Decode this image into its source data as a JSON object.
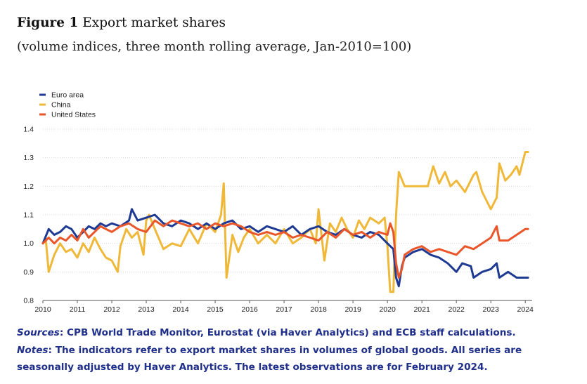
{
  "figure": {
    "label": "Figure 1",
    "title": "Export market shares",
    "subtitle": "(volume indices, three month rolling average, Jan-2010=100)"
  },
  "footer": {
    "sources_label": "Sources",
    "sources_text": ": CPB World Trade Monitor, Eurostat (via Haver Analytics) and ECB staff calculations.",
    "notes_label": "Notes",
    "notes_text": ": The indicators refer to export market shares in volumes of global goods. All series are seasonally adjusted by Haver Analytics. The latest observations are for February 2024."
  },
  "chart_data": {
    "type": "line",
    "xlabel": "",
    "ylabel": "",
    "xlim": [
      2010,
      2024.2
    ],
    "ylim": [
      0.8,
      1.4
    ],
    "x_ticks": [
      2010,
      2011,
      2012,
      2013,
      2014,
      2015,
      2016,
      2017,
      2018,
      2019,
      2020,
      2021,
      2022,
      2023,
      2024
    ],
    "y_ticks": [
      0.8,
      0.9,
      1.0,
      1.1,
      1.2,
      1.3,
      1.4
    ],
    "grid": true,
    "legend_position": "top-left",
    "series": [
      {
        "name": "Euro area",
        "color": "#1f3a93",
        "points": [
          [
            2010.0,
            1.0
          ],
          [
            2010.17,
            1.05
          ],
          [
            2010.33,
            1.03
          ],
          [
            2010.5,
            1.04
          ],
          [
            2010.67,
            1.06
          ],
          [
            2010.83,
            1.05
          ],
          [
            2011.0,
            1.02
          ],
          [
            2011.17,
            1.04
          ],
          [
            2011.33,
            1.06
          ],
          [
            2011.5,
            1.05
          ],
          [
            2011.67,
            1.07
          ],
          [
            2011.83,
            1.06
          ],
          [
            2012.0,
            1.07
          ],
          [
            2012.25,
            1.06
          ],
          [
            2012.5,
            1.08
          ],
          [
            2012.58,
            1.12
          ],
          [
            2012.75,
            1.08
          ],
          [
            2013.0,
            1.09
          ],
          [
            2013.25,
            1.1
          ],
          [
            2013.5,
            1.07
          ],
          [
            2013.75,
            1.06
          ],
          [
            2014.0,
            1.08
          ],
          [
            2014.25,
            1.07
          ],
          [
            2014.5,
            1.05
          ],
          [
            2014.75,
            1.07
          ],
          [
            2015.0,
            1.05
          ],
          [
            2015.25,
            1.07
          ],
          [
            2015.5,
            1.08
          ],
          [
            2015.75,
            1.05
          ],
          [
            2016.0,
            1.06
          ],
          [
            2016.25,
            1.04
          ],
          [
            2016.5,
            1.06
          ],
          [
            2016.75,
            1.05
          ],
          [
            2017.0,
            1.04
          ],
          [
            2017.25,
            1.06
          ],
          [
            2017.5,
            1.03
          ],
          [
            2017.75,
            1.05
          ],
          [
            2018.0,
            1.06
          ],
          [
            2018.25,
            1.04
          ],
          [
            2018.5,
            1.03
          ],
          [
            2018.75,
            1.05
          ],
          [
            2019.0,
            1.03
          ],
          [
            2019.25,
            1.02
          ],
          [
            2019.5,
            1.04
          ],
          [
            2019.75,
            1.03
          ],
          [
            2020.0,
            1.0
          ],
          [
            2020.17,
            0.98
          ],
          [
            2020.25,
            0.88
          ],
          [
            2020.33,
            0.85
          ],
          [
            2020.42,
            0.92
          ],
          [
            2020.5,
            0.95
          ],
          [
            2020.75,
            0.97
          ],
          [
            2021.0,
            0.98
          ],
          [
            2021.25,
            0.96
          ],
          [
            2021.5,
            0.95
          ],
          [
            2021.75,
            0.93
          ],
          [
            2022.0,
            0.9
          ],
          [
            2022.17,
            0.93
          ],
          [
            2022.42,
            0.92
          ],
          [
            2022.5,
            0.88
          ],
          [
            2022.75,
            0.9
          ],
          [
            2023.0,
            0.91
          ],
          [
            2023.17,
            0.93
          ],
          [
            2023.25,
            0.88
          ],
          [
            2023.5,
            0.9
          ],
          [
            2023.75,
            0.88
          ],
          [
            2024.0,
            0.88
          ],
          [
            2024.08,
            0.88
          ]
        ]
      },
      {
        "name": "China",
        "color": "#f0b838",
        "points": [
          [
            2010.0,
            1.0
          ],
          [
            2010.08,
            1.02
          ],
          [
            2010.17,
            0.9
          ],
          [
            2010.33,
            0.96
          ],
          [
            2010.5,
            1.0
          ],
          [
            2010.67,
            0.97
          ],
          [
            2010.83,
            0.98
          ],
          [
            2011.0,
            0.95
          ],
          [
            2011.17,
            1.0
          ],
          [
            2011.33,
            0.97
          ],
          [
            2011.5,
            1.02
          ],
          [
            2011.67,
            0.98
          ],
          [
            2011.83,
            0.95
          ],
          [
            2012.0,
            0.94
          ],
          [
            2012.17,
            0.9
          ],
          [
            2012.25,
            0.99
          ],
          [
            2012.42,
            1.05
          ],
          [
            2012.58,
            1.02
          ],
          [
            2012.75,
            1.04
          ],
          [
            2012.92,
            0.96
          ],
          [
            2013.0,
            1.08
          ],
          [
            2013.08,
            1.1
          ],
          [
            2013.25,
            1.05
          ],
          [
            2013.5,
            0.98
          ],
          [
            2013.75,
            1.0
          ],
          [
            2014.0,
            0.99
          ],
          [
            2014.25,
            1.05
          ],
          [
            2014.5,
            1.0
          ],
          [
            2014.75,
            1.07
          ],
          [
            2015.0,
            1.04
          ],
          [
            2015.17,
            1.1
          ],
          [
            2015.25,
            1.21
          ],
          [
            2015.33,
            0.88
          ],
          [
            2015.5,
            1.03
          ],
          [
            2015.67,
            0.97
          ],
          [
            2015.83,
            1.02
          ],
          [
            2016.0,
            1.05
          ],
          [
            2016.25,
            1.0
          ],
          [
            2016.5,
            1.03
          ],
          [
            2016.75,
            1.0
          ],
          [
            2017.0,
            1.05
          ],
          [
            2017.25,
            1.0
          ],
          [
            2017.5,
            1.02
          ],
          [
            2017.75,
            1.05
          ],
          [
            2017.92,
            1.0
          ],
          [
            2018.0,
            1.12
          ],
          [
            2018.17,
            0.94
          ],
          [
            2018.33,
            1.07
          ],
          [
            2018.5,
            1.04
          ],
          [
            2018.67,
            1.09
          ],
          [
            2018.83,
            1.05
          ],
          [
            2019.0,
            1.02
          ],
          [
            2019.17,
            1.08
          ],
          [
            2019.33,
            1.05
          ],
          [
            2019.5,
            1.09
          ],
          [
            2019.75,
            1.07
          ],
          [
            2019.92,
            1.09
          ],
          [
            2020.0,
            0.99
          ],
          [
            2020.08,
            0.83
          ],
          [
            2020.17,
            0.83
          ],
          [
            2020.25,
            1.1
          ],
          [
            2020.33,
            1.25
          ],
          [
            2020.5,
            1.2
          ],
          [
            2020.75,
            1.2
          ],
          [
            2021.0,
            1.2
          ],
          [
            2021.17,
            1.2
          ],
          [
            2021.33,
            1.27
          ],
          [
            2021.5,
            1.21
          ],
          [
            2021.67,
            1.25
          ],
          [
            2021.83,
            1.2
          ],
          [
            2022.0,
            1.22
          ],
          [
            2022.25,
            1.18
          ],
          [
            2022.5,
            1.24
          ],
          [
            2022.58,
            1.25
          ],
          [
            2022.75,
            1.18
          ],
          [
            2023.0,
            1.12
          ],
          [
            2023.17,
            1.16
          ],
          [
            2023.25,
            1.28
          ],
          [
            2023.42,
            1.22
          ],
          [
            2023.58,
            1.24
          ],
          [
            2023.75,
            1.27
          ],
          [
            2023.83,
            1.24
          ],
          [
            2024.0,
            1.32
          ],
          [
            2024.08,
            1.32
          ]
        ]
      },
      {
        "name": "United States",
        "color": "#e8562a",
        "points": [
          [
            2010.0,
            1.0
          ],
          [
            2010.17,
            1.02
          ],
          [
            2010.33,
            1.0
          ],
          [
            2010.5,
            1.02
          ],
          [
            2010.67,
            1.01
          ],
          [
            2010.83,
            1.03
          ],
          [
            2011.0,
            1.01
          ],
          [
            2011.17,
            1.05
          ],
          [
            2011.33,
            1.02
          ],
          [
            2011.5,
            1.04
          ],
          [
            2011.67,
            1.06
          ],
          [
            2011.83,
            1.05
          ],
          [
            2012.0,
            1.04
          ],
          [
            2012.25,
            1.06
          ],
          [
            2012.5,
            1.07
          ],
          [
            2012.75,
            1.05
          ],
          [
            2013.0,
            1.04
          ],
          [
            2013.25,
            1.08
          ],
          [
            2013.5,
            1.06
          ],
          [
            2013.75,
            1.08
          ],
          [
            2014.0,
            1.07
          ],
          [
            2014.25,
            1.06
          ],
          [
            2014.5,
            1.07
          ],
          [
            2014.75,
            1.05
          ],
          [
            2015.0,
            1.07
          ],
          [
            2015.25,
            1.06
          ],
          [
            2015.5,
            1.07
          ],
          [
            2015.75,
            1.06
          ],
          [
            2016.0,
            1.04
          ],
          [
            2016.25,
            1.03
          ],
          [
            2016.5,
            1.04
          ],
          [
            2016.75,
            1.03
          ],
          [
            2017.0,
            1.04
          ],
          [
            2017.25,
            1.02
          ],
          [
            2017.5,
            1.03
          ],
          [
            2017.75,
            1.02
          ],
          [
            2018.0,
            1.01
          ],
          [
            2018.25,
            1.04
          ],
          [
            2018.5,
            1.02
          ],
          [
            2018.75,
            1.05
          ],
          [
            2019.0,
            1.03
          ],
          [
            2019.25,
            1.04
          ],
          [
            2019.5,
            1.02
          ],
          [
            2019.75,
            1.04
          ],
          [
            2020.0,
            1.03
          ],
          [
            2020.08,
            1.07
          ],
          [
            2020.17,
            1.04
          ],
          [
            2020.25,
            0.93
          ],
          [
            2020.33,
            0.88
          ],
          [
            2020.42,
            0.91
          ],
          [
            2020.5,
            0.96
          ],
          [
            2020.75,
            0.98
          ],
          [
            2021.0,
            0.99
          ],
          [
            2021.25,
            0.97
          ],
          [
            2021.5,
            0.98
          ],
          [
            2021.75,
            0.97
          ],
          [
            2022.0,
            0.96
          ],
          [
            2022.25,
            0.99
          ],
          [
            2022.5,
            0.98
          ],
          [
            2022.75,
            1.0
          ],
          [
            2023.0,
            1.02
          ],
          [
            2023.17,
            1.06
          ],
          [
            2023.25,
            1.01
          ],
          [
            2023.5,
            1.01
          ],
          [
            2023.75,
            1.03
          ],
          [
            2024.0,
            1.05
          ],
          [
            2024.08,
            1.05
          ]
        ]
      }
    ]
  }
}
